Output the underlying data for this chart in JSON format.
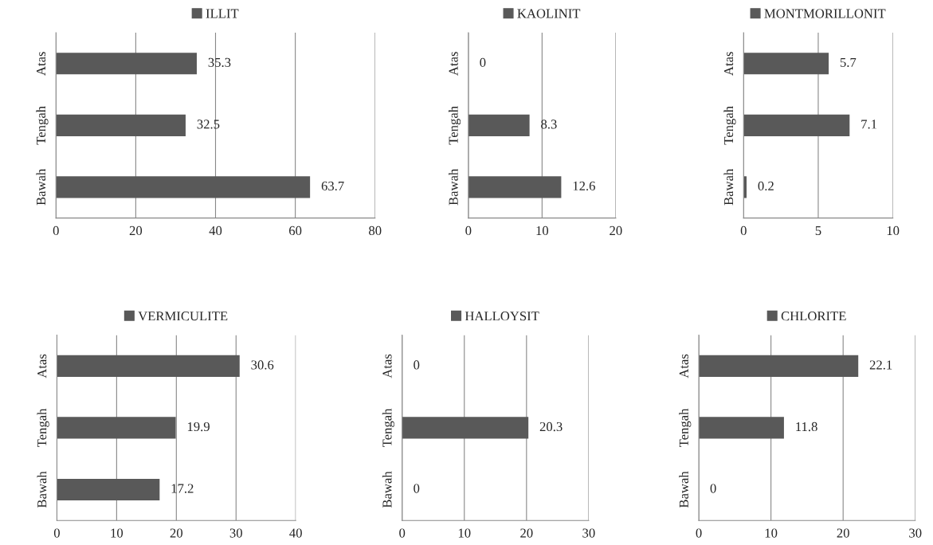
{
  "chart_data": [
    {
      "type": "bar",
      "orientation": "horizontal",
      "categories": [
        "Atas",
        "Tengah",
        "Bawah"
      ],
      "series": [
        {
          "name": "ILLIT",
          "color": "#595959",
          "values": [
            35.3,
            32.5,
            63.7
          ]
        }
      ],
      "xlim": [
        0,
        80
      ],
      "xticks": [
        0,
        20,
        40,
        60,
        80
      ],
      "grid": "x",
      "legend": "top",
      "data_labels": true
    },
    {
      "type": "bar",
      "orientation": "horizontal",
      "categories": [
        "Atas",
        "Tengah",
        "Bawah"
      ],
      "series": [
        {
          "name": "KAOLINIT",
          "color": "#595959",
          "values": [
            0,
            8.3,
            12.6
          ]
        }
      ],
      "xlim": [
        0,
        20
      ],
      "xticks": [
        0,
        10,
        20
      ],
      "grid": "x",
      "legend": "top",
      "data_labels": true
    },
    {
      "type": "bar",
      "orientation": "horizontal",
      "categories": [
        "Atas",
        "Tengah",
        "Bawah"
      ],
      "series": [
        {
          "name": "MONTMORILLONIT",
          "color": "#595959",
          "values": [
            5.7,
            7.1,
            0.2
          ]
        }
      ],
      "xlim": [
        0,
        10
      ],
      "xticks": [
        0,
        5,
        10
      ],
      "grid": "x",
      "legend": "top",
      "data_labels": true
    },
    {
      "type": "bar",
      "orientation": "horizontal",
      "categories": [
        "Atas",
        "Tengah",
        "Bawah"
      ],
      "series": [
        {
          "name": "VERMICULITE",
          "color": "#595959",
          "values": [
            30.6,
            19.9,
            17.2
          ]
        }
      ],
      "xlim": [
        0,
        40
      ],
      "xticks": [
        0,
        10,
        20,
        30,
        40
      ],
      "grid": "x",
      "legend": "top",
      "data_labels": true
    },
    {
      "type": "bar",
      "orientation": "horizontal",
      "categories": [
        "Atas",
        "Tengah",
        "Bawah"
      ],
      "series": [
        {
          "name": "HALLOYSIT",
          "color": "#595959",
          "values": [
            0,
            20.3,
            0
          ]
        }
      ],
      "xlim": [
        0,
        30
      ],
      "xticks": [
        0,
        10,
        20,
        30
      ],
      "grid": "x",
      "legend": "top",
      "data_labels": true
    },
    {
      "type": "bar",
      "orientation": "horizontal",
      "categories": [
        "Atas",
        "Tengah",
        "Bawah"
      ],
      "series": [
        {
          "name": "CHLORITE",
          "color": "#595959",
          "values": [
            22.1,
            11.8,
            0
          ]
        }
      ],
      "xlim": [
        0,
        30
      ],
      "xticks": [
        0,
        10,
        20,
        30
      ],
      "grid": "x",
      "legend": "top",
      "data_labels": true
    }
  ]
}
